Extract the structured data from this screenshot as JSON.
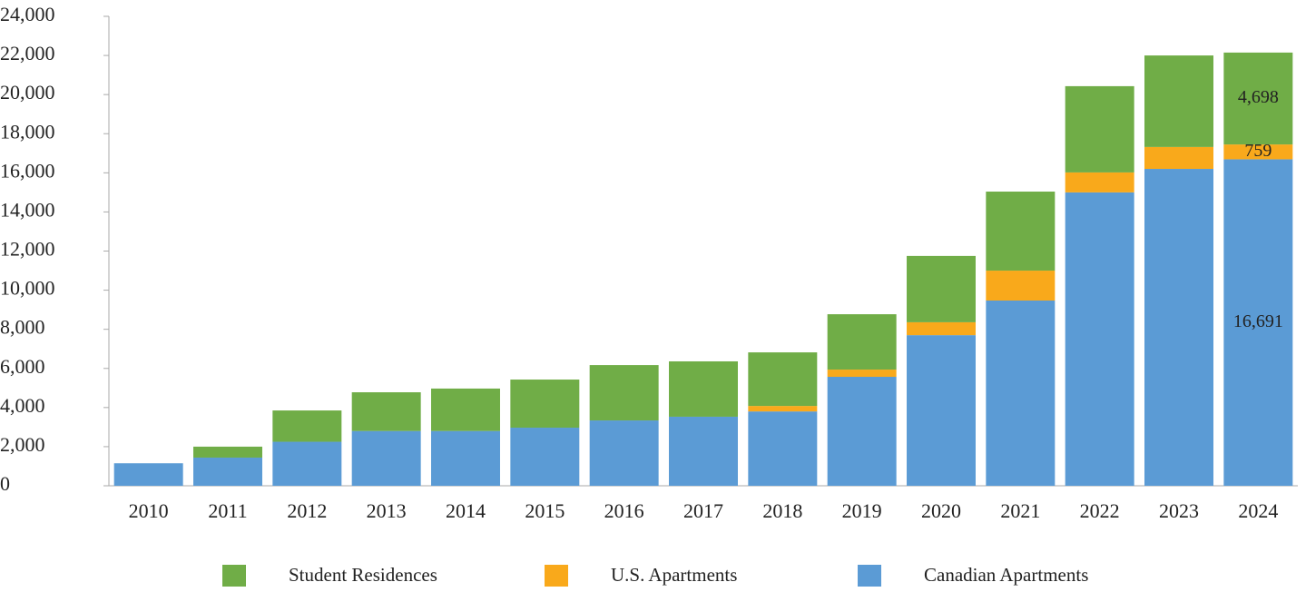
{
  "chart_data": {
    "type": "stacked_bar",
    "categories": [
      "2010",
      "2011",
      "2012",
      "2013",
      "2014",
      "2015",
      "2016",
      "2017",
      "2018",
      "2019",
      "2020",
      "2021",
      "2022",
      "2023",
      "2024"
    ],
    "series": [
      {
        "name": "Student Residences",
        "color": "#70ad47",
        "values": [
          0,
          560,
          1600,
          1980,
          2170,
          2460,
          2830,
          2830,
          2740,
          2830,
          3390,
          4040,
          4410,
          4680,
          4698
        ],
        "value_labels": [
          null,
          null,
          null,
          null,
          null,
          null,
          null,
          null,
          null,
          null,
          null,
          null,
          null,
          null,
          "4,698"
        ]
      },
      {
        "name": "U.S. Apartments",
        "color": "#f9a91b",
        "values": [
          0,
          0,
          0,
          0,
          0,
          0,
          0,
          0,
          280,
          370,
          660,
          1530,
          1020,
          1120,
          759
        ],
        "value_labels": [
          null,
          null,
          null,
          null,
          null,
          null,
          null,
          null,
          null,
          null,
          null,
          null,
          null,
          null,
          "759"
        ]
      },
      {
        "name": "Canadian Apartments",
        "color": "#5b9bd5",
        "values": [
          1150,
          1440,
          2250,
          2800,
          2800,
          2970,
          3340,
          3530,
          3800,
          5570,
          7700,
          9470,
          15000,
          16200,
          16691
        ],
        "value_labels": [
          null,
          null,
          null,
          null,
          null,
          null,
          null,
          null,
          null,
          null,
          null,
          null,
          null,
          null,
          "16,691"
        ]
      }
    ],
    "ylim": [
      0,
      24000
    ],
    "yticks": [
      0,
      {
        "value": 2000,
        "label": "2,000"
      },
      {
        "value": 4000,
        "label": "4,000"
      },
      {
        "value": 6000,
        "label": "6,000"
      },
      {
        "value": 8000,
        "label": "8,000"
      },
      {
        "value": 10000,
        "label": "10,000"
      },
      {
        "value": 12000,
        "label": "12,000"
      },
      {
        "value": 14000,
        "label": "14,000"
      },
      {
        "value": 16000,
        "label": "16,000"
      },
      {
        "value": 18000,
        "label": "18,000"
      },
      {
        "value": 20000,
        "label": "20,000"
      },
      {
        "value": 22000,
        "label": "22,000"
      },
      {
        "value": 24000,
        "label": "24,000"
      }
    ],
    "legend": "bottom"
  }
}
